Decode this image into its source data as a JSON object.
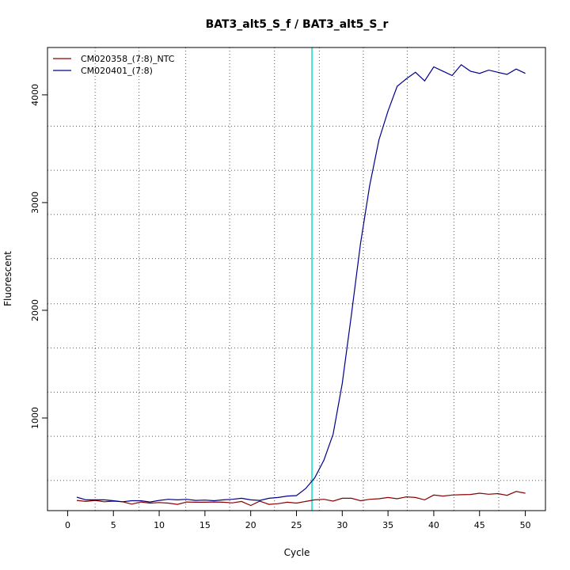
{
  "chart_data": {
    "type": "line",
    "title": "BAT3_alt5_S_f / BAT3_alt5_S_r",
    "xlabel": "Cycle",
    "ylabel": "Fluorescent",
    "xlim": [
      -2.2,
      52.2
    ],
    "ylim": [
      140,
      4440
    ],
    "x_ticks": [
      0,
      5,
      10,
      15,
      20,
      25,
      30,
      35,
      40,
      45,
      50
    ],
    "y_ticks": [
      1000,
      2000,
      3000,
      4000
    ],
    "x_grid": [
      3,
      7.8,
      12.9,
      17.7,
      22.6,
      27.5,
      32.3,
      37.1,
      42.2,
      47.1
    ],
    "y_grid": [
      420,
      830,
      1240,
      1650,
      2060,
      2480,
      2890,
      3300,
      3710
    ],
    "grid": true,
    "grid_style": "dotted",
    "threshold_x": 26.7,
    "threshold_color": "#40e0d0",
    "legend_position": "top-left",
    "x": [
      1,
      2,
      3,
      4,
      5,
      6,
      7,
      8,
      9,
      10,
      11,
      12,
      13,
      14,
      15,
      16,
      17,
      18,
      19,
      20,
      21,
      22,
      23,
      24,
      25,
      26,
      27,
      28,
      29,
      30,
      31,
      32,
      33,
      34,
      35,
      36,
      37,
      38,
      39,
      40,
      41,
      42,
      43,
      44,
      45,
      46,
      47,
      48,
      49,
      50
    ],
    "series": [
      {
        "name": "CM020358_(7:8)_NTC",
        "color": "#8b0000",
        "values": [
          235,
          225,
          235,
          222,
          228,
          222,
          200,
          220,
          210,
          215,
          210,
          198,
          220,
          218,
          218,
          220,
          218,
          212,
          225,
          188,
          228,
          198,
          205,
          218,
          210,
          225,
          240,
          245,
          228,
          255,
          255,
          232,
          245,
          250,
          262,
          250,
          268,
          262,
          240,
          285,
          275,
          285,
          288,
          290,
          302,
          292,
          298,
          282,
          318,
          302
        ]
      },
      {
        "name": "CM020401_(7:8)",
        "color": "#00008b",
        "values": [
          265,
          240,
          240,
          240,
          232,
          222,
          232,
          232,
          220,
          235,
          245,
          240,
          245,
          235,
          238,
          232,
          240,
          245,
          255,
          240,
          235,
          255,
          262,
          275,
          280,
          345,
          445,
          610,
          850,
          1320,
          1960,
          2620,
          3160,
          3580,
          3850,
          4080,
          4150,
          4210,
          4130,
          4260,
          4220,
          4180,
          4280,
          4220,
          4200,
          4230,
          4210,
          4190,
          4240,
          4200
        ]
      }
    ]
  }
}
